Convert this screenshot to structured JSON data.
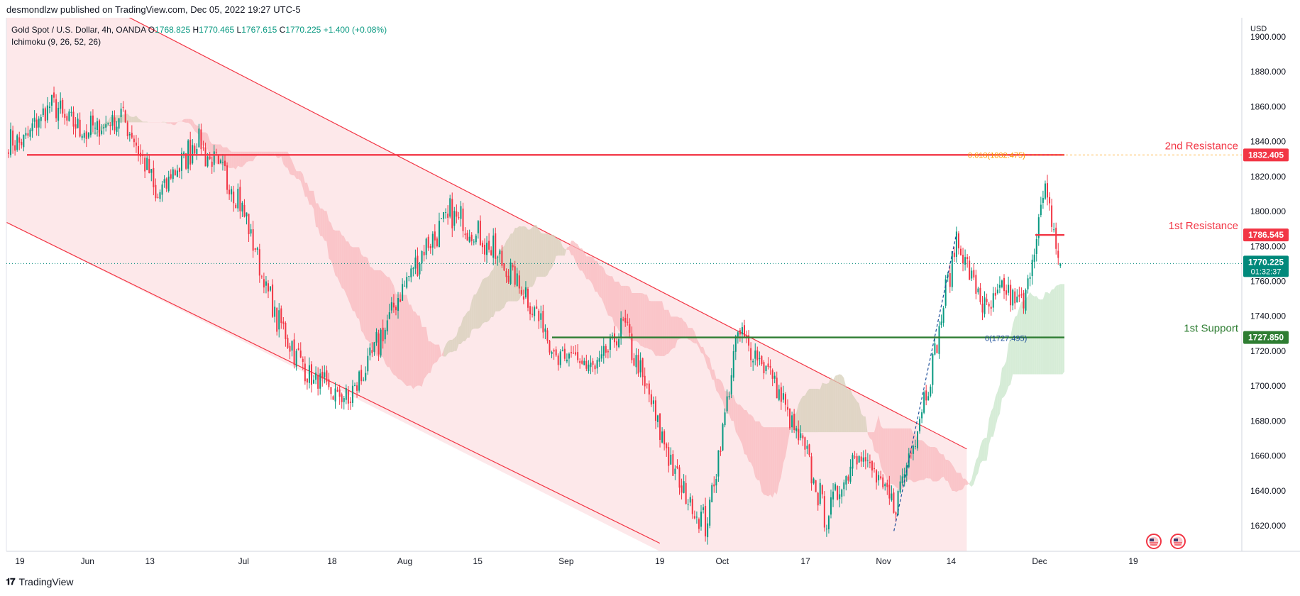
{
  "header": {
    "published": "desmondlzw published on TradingView.com, Dec 05, 2022 19:27 UTC-5"
  },
  "legend": {
    "symbol": "Gold Spot / U.S. Dollar, 4h, OANDA",
    "ohlc": {
      "o_label": "O",
      "o": "1768.825",
      "h_label": "H",
      "h": "1770.465",
      "l_label": "L",
      "l": "1767.615",
      "c_label": "C",
      "c": "1770.225",
      "change": "+1.400 (+0.08%)"
    },
    "indicator": "Ichimoku (9, 26, 52, 26)"
  },
  "footer": {
    "brand": "TradingView"
  },
  "colors": {
    "resistance": "#f23645",
    "support": "#2e7d32",
    "channel_fill": "#fde4e6",
    "channel_line": "#f23645",
    "candle_up": "#089981",
    "candle_down": "#f23645",
    "cloud_bear": "#f8b9bd",
    "cloud_bull": "#c8e6c9",
    "cloud_neutral": "#d6cfb8",
    "fib_orange": "#ff9800",
    "fib_blue": "#1e4f9a",
    "last_price": "#00897b"
  },
  "chart_data": {
    "type": "candlestick",
    "timeframe": "4h",
    "currency": "USD",
    "ylim": [
      1610,
      1900
    ],
    "y_ticks": [
      "1620.000",
      "1640.000",
      "1660.000",
      "1680.000",
      "1700.000",
      "1720.000",
      "1740.000",
      "1760.000",
      "1780.000",
      "1800.000",
      "1820.000",
      "1840.000",
      "1860.000",
      "1880.000",
      "1900.000"
    ],
    "x_ticks": [
      "19",
      "Jun",
      "13",
      "Jul",
      "18",
      "Aug",
      "15",
      "Sep",
      "19",
      "Oct",
      "17",
      "Nov",
      "14",
      "Dec",
      "19"
    ],
    "price_path": [
      [
        "2022-05-19",
        1840
      ],
      [
        "2022-05-25",
        1860
      ],
      [
        "2022-06-01",
        1845
      ],
      [
        "2022-06-08",
        1855
      ],
      [
        "2022-06-13",
        1820
      ],
      [
        "2022-06-14",
        1808
      ],
      [
        "2022-06-22",
        1840
      ],
      [
        "2022-06-30",
        1810
      ],
      [
        "2022-07-07",
        1740
      ],
      [
        "2022-07-14",
        1705
      ],
      [
        "2022-07-21",
        1690
      ],
      [
        "2022-07-27",
        1725
      ],
      [
        "2022-08-03",
        1770
      ],
      [
        "2022-08-10",
        1800
      ],
      [
        "2022-08-17",
        1780
      ],
      [
        "2022-08-24",
        1755
      ],
      [
        "2022-08-31",
        1715
      ],
      [
        "2022-09-07",
        1710
      ],
      [
        "2022-09-12",
        1735
      ],
      [
        "2022-09-19",
        1675
      ],
      [
        "2022-09-23",
        1640
      ],
      [
        "2022-09-28",
        1620
      ],
      [
        "2022-10-04",
        1730
      ],
      [
        "2022-10-10",
        1710
      ],
      [
        "2022-10-17",
        1660
      ],
      [
        "2022-10-21",
        1625
      ],
      [
        "2022-10-27",
        1665
      ],
      [
        "2022-11-03",
        1630
      ],
      [
        "2022-11-10",
        1705
      ],
      [
        "2022-11-15",
        1786
      ],
      [
        "2022-11-21",
        1740
      ],
      [
        "2022-11-24",
        1755
      ],
      [
        "2022-11-28",
        1745
      ],
      [
        "2022-12-01",
        1800
      ],
      [
        "2022-12-02",
        1810
      ],
      [
        "2022-12-05",
        1770
      ]
    ],
    "levels": [
      {
        "name": "2nd Resistance",
        "value": "1832.405",
        "kind": "resistance"
      },
      {
        "name": "1st Resistance",
        "value": "1786.545",
        "kind": "resistance"
      },
      {
        "name": "1st Support",
        "value": "1727.850",
        "kind": "support"
      }
    ],
    "fib_labels": [
      {
        "text": "0.618(1832.475)",
        "value": 1832.4
      },
      {
        "text": "0(1727.495)",
        "value": 1727.5
      }
    ],
    "last_price": {
      "value": "1770.225",
      "countdown": "01:32:37"
    },
    "descending_channel": {
      "upper": [
        [
          "2022-06-13",
          1905
        ],
        [
          "2022-11-17",
          1664
        ]
      ],
      "lower": [
        [
          "2022-05-19",
          1790
        ],
        [
          "2022-09-19",
          1610
        ]
      ]
    }
  }
}
